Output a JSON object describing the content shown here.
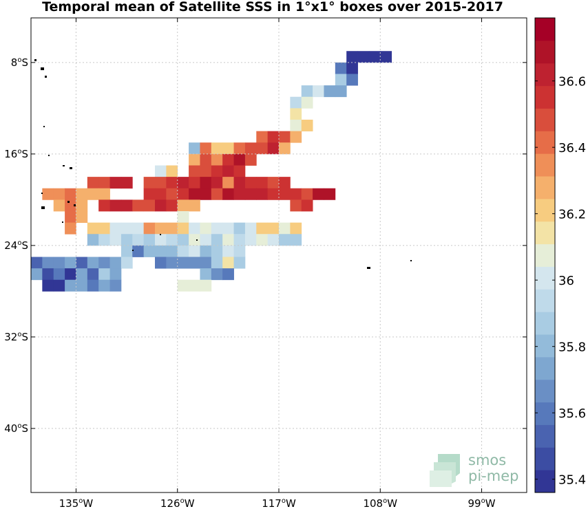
{
  "chart_data": {
    "type": "heatmap",
    "title": "Temporal mean of Satellite SSS in 1°x1° boxes over 2015-2017",
    "x_ticks": [
      {
        "value": -135,
        "label": "135°W"
      },
      {
        "value": -126,
        "label": "126°W"
      },
      {
        "value": -117,
        "label": "117°W"
      },
      {
        "value": -108,
        "label": "108°W"
      },
      {
        "value": -99,
        "label": "99°W"
      }
    ],
    "y_ticks": [
      {
        "value": -8,
        "label": "8°S"
      },
      {
        "value": -16,
        "label": "16°S"
      },
      {
        "value": -24,
        "label": "24°S"
      },
      {
        "value": -32,
        "label": "32°S"
      },
      {
        "value": -40,
        "label": "40°S"
      }
    ],
    "xlim": [
      -139,
      -95
    ],
    "ylim": [
      -45.6,
      -4.1
    ],
    "grid": true,
    "colorbar": {
      "range": [
        35.36,
        36.79
      ],
      "ticks": [
        35.4,
        35.6,
        35.8,
        36,
        36.2,
        36.4,
        36.6
      ],
      "tick_labels": [
        "35.4",
        "35.6",
        "35.8",
        "36",
        "36.2",
        "36.4",
        "36.6"
      ],
      "levels": 21,
      "colors": [
        "#313695",
        "#3c4da3",
        "#4a63b0",
        "#5779bb",
        "#6a8fc5",
        "#7ea7d0",
        "#93bbda",
        "#a9cce3",
        "#bfdaea",
        "#d4e6ee",
        "#e6eed8",
        "#f3e3a6",
        "#f7cc80",
        "#f5b06c",
        "#ef8f58",
        "#e66d48",
        "#d94e3c",
        "#cc3232",
        "#be2230",
        "#af1328",
        "#a50026"
      ]
    },
    "cells": [
      [
        -111,
        -7,
        35.4
      ],
      [
        -110,
        -7,
        35.4
      ],
      [
        -109,
        -7,
        35.4
      ],
      [
        -108,
        -7,
        35.4
      ],
      [
        -112,
        -8,
        35.6
      ],
      [
        -111,
        -8,
        35.42
      ],
      [
        -112,
        -9,
        35.9
      ],
      [
        -111,
        -9,
        35.6
      ],
      [
        -115,
        -10,
        35.85
      ],
      [
        -114,
        -10,
        36.02
      ],
      [
        -113,
        -10,
        35.75
      ],
      [
        -112,
        -10,
        35.75
      ],
      [
        -116,
        -11,
        35.92
      ],
      [
        -115,
        -11,
        36.08
      ],
      [
        -116,
        -12,
        36.12
      ],
      [
        -116,
        -13,
        36.05
      ],
      [
        -115,
        -13,
        36.2
      ],
      [
        -119,
        -14,
        36.42
      ],
      [
        -118,
        -14,
        36.55
      ],
      [
        -117,
        -14,
        36.5
      ],
      [
        -116,
        -14,
        36.28
      ],
      [
        -125,
        -15,
        35.8
      ],
      [
        -124,
        -15,
        36.42
      ],
      [
        -123,
        -15,
        36.2
      ],
      [
        -122,
        -15,
        36.2
      ],
      [
        -121,
        -15,
        36.42
      ],
      [
        -120,
        -15,
        36.5
      ],
      [
        -119,
        -15,
        36.46
      ],
      [
        -118,
        -15,
        36.62
      ],
      [
        -117,
        -15,
        36.3
      ],
      [
        -125,
        -16,
        36.28
      ],
      [
        -124,
        -16,
        36.45
      ],
      [
        -123,
        -16,
        36.38
      ],
      [
        -122,
        -16,
        36.58
      ],
      [
        -121,
        -16,
        36.7
      ],
      [
        -120,
        -16,
        36.46
      ],
      [
        -128,
        -17,
        36.0
      ],
      [
        -127,
        -17,
        36.2
      ],
      [
        -125,
        -17,
        36.45
      ],
      [
        -124,
        -17,
        36.45
      ],
      [
        -123,
        -17,
        36.56
      ],
      [
        -122,
        -17,
        36.62
      ],
      [
        -121,
        -17,
        36.56
      ],
      [
        -134,
        -18,
        36.5
      ],
      [
        -133,
        -18,
        36.5
      ],
      [
        -132,
        -18,
        36.6
      ],
      [
        -131,
        -18,
        36.6
      ],
      [
        -129,
        -18,
        36.5
      ],
      [
        -128,
        -18,
        36.45
      ],
      [
        -127,
        -18,
        36.52
      ],
      [
        -126,
        -18,
        36.6
      ],
      [
        -125,
        -18,
        36.58
      ],
      [
        -124,
        -18,
        36.72
      ],
      [
        -123,
        -18,
        36.62
      ],
      [
        -122,
        -18,
        36.36
      ],
      [
        -121,
        -18,
        36.65
      ],
      [
        -120,
        -18,
        36.55
      ],
      [
        -119,
        -18,
        36.58
      ],
      [
        -118,
        -18,
        36.5
      ],
      [
        -117,
        -18,
        36.54
      ],
      [
        -138,
        -19,
        36.32
      ],
      [
        -137,
        -19,
        36.32
      ],
      [
        -136,
        -19,
        36.4
      ],
      [
        -135,
        -19,
        36.3
      ],
      [
        -134,
        -19,
        36.26
      ],
      [
        -133,
        -19,
        36.3
      ],
      [
        -129,
        -19,
        36.54
      ],
      [
        -128,
        -19,
        36.55
      ],
      [
        -127,
        -19,
        36.45
      ],
      [
        -126,
        -19,
        36.55
      ],
      [
        -125,
        -19,
        36.68
      ],
      [
        -124,
        -19,
        36.72
      ],
      [
        -123,
        -19,
        36.45
      ],
      [
        -122,
        -19,
        36.7
      ],
      [
        -121,
        -19,
        36.65
      ],
      [
        -120,
        -19,
        36.65
      ],
      [
        -119,
        -19,
        36.6
      ],
      [
        -118,
        -19,
        36.52
      ],
      [
        -117,
        -19,
        36.55
      ],
      [
        -116,
        -19,
        36.55
      ],
      [
        -115,
        -19,
        36.5
      ],
      [
        -114,
        -19,
        36.72
      ],
      [
        -113,
        -19,
        36.72
      ],
      [
        -137,
        -20,
        36.3
      ],
      [
        -136,
        -20,
        36.4
      ],
      [
        -135,
        -20,
        36.3
      ],
      [
        -133,
        -20,
        36.58
      ],
      [
        -132,
        -20,
        36.6
      ],
      [
        -131,
        -20,
        36.6
      ],
      [
        -130,
        -20,
        36.45
      ],
      [
        -129,
        -20,
        36.46
      ],
      [
        -128,
        -20,
        36.6
      ],
      [
        -127,
        -20,
        36.52
      ],
      [
        -126,
        -20,
        36.3
      ],
      [
        -125,
        -20,
        36.26
      ],
      [
        -116,
        -20,
        36.46
      ],
      [
        -115,
        -20,
        36.56
      ],
      [
        -136,
        -21,
        36.4
      ],
      [
        -135,
        -21,
        36.3
      ],
      [
        -126,
        -21,
        36.08
      ],
      [
        -136,
        -22,
        36.35
      ],
      [
        -134,
        -22,
        36.22
      ],
      [
        -133,
        -22,
        36.2
      ],
      [
        -132,
        -22,
        36.04
      ],
      [
        -131,
        -22,
        36.04
      ],
      [
        -130,
        -22,
        36.04
      ],
      [
        -129,
        -22,
        36.36
      ],
      [
        -128,
        -22,
        36.26
      ],
      [
        -127,
        -22,
        36.3
      ],
      [
        -126,
        -22,
        36.2
      ],
      [
        -125,
        -22,
        36.04
      ],
      [
        -124,
        -22,
        36.1
      ],
      [
        -123,
        -22,
        36.04
      ],
      [
        -122,
        -22,
        35.98
      ],
      [
        -121,
        -22,
        35.88
      ],
      [
        -120,
        -22,
        36.04
      ],
      [
        -119,
        -22,
        36.2
      ],
      [
        -118,
        -22,
        36.2
      ],
      [
        -117,
        -22,
        36.1
      ],
      [
        -116,
        -22,
        36.2
      ],
      [
        -134,
        -23,
        35.82
      ],
      [
        -133,
        -23,
        35.96
      ],
      [
        -132,
        -23,
        35.98
      ],
      [
        -131,
        -23,
        35.88
      ],
      [
        -130,
        -23,
        35.92
      ],
      [
        -129,
        -23,
        35.86
      ],
      [
        -128,
        -23,
        36.0
      ],
      [
        -127,
        -23,
        35.92
      ],
      [
        -126,
        -23,
        35.9
      ],
      [
        -125,
        -23,
        36.06
      ],
      [
        -124,
        -23,
        36.02
      ],
      [
        -123,
        -23,
        35.84
      ],
      [
        -122,
        -23,
        36.06
      ],
      [
        -121,
        -23,
        35.92
      ],
      [
        -120,
        -23,
        36.02
      ],
      [
        -119,
        -23,
        36.08
      ],
      [
        -118,
        -23,
        36.02
      ],
      [
        -117,
        -23,
        35.86
      ],
      [
        -116,
        -23,
        35.86
      ],
      [
        -131,
        -24,
        35.88
      ],
      [
        -130,
        -24,
        35.58
      ],
      [
        -129,
        -24,
        35.78
      ],
      [
        -128,
        -24,
        35.78
      ],
      [
        -127,
        -24,
        35.82
      ],
      [
        -126,
        -24,
        35.95
      ],
      [
        -125,
        -24,
        36.0
      ],
      [
        -124,
        -24,
        35.82
      ],
      [
        -123,
        -24,
        35.88
      ],
      [
        -122,
        -24,
        36.0
      ],
      [
        -121,
        -24,
        35.94
      ],
      [
        -139,
        -25,
        35.5
      ],
      [
        -138,
        -25,
        35.7
      ],
      [
        -137,
        -25,
        35.7
      ],
      [
        -136,
        -25,
        35.72
      ],
      [
        -135,
        -25,
        35.55
      ],
      [
        -134,
        -25,
        35.75
      ],
      [
        -133,
        -25,
        35.7
      ],
      [
        -132,
        -25,
        35.75
      ],
      [
        -131,
        -25,
        35.95
      ],
      [
        -128,
        -25,
        35.62
      ],
      [
        -127,
        -25,
        35.7
      ],
      [
        -126,
        -25,
        35.64
      ],
      [
        -125,
        -25,
        35.65
      ],
      [
        -124,
        -25,
        35.7
      ],
      [
        -123,
        -25,
        35.86
      ],
      [
        -122,
        -25,
        36.14
      ],
      [
        -121,
        -25,
        35.88
      ],
      [
        -139,
        -26,
        35.75
      ],
      [
        -138,
        -26,
        35.45
      ],
      [
        -137,
        -26,
        35.6
      ],
      [
        -136,
        -26,
        35.4
      ],
      [
        -135,
        -26,
        35.76
      ],
      [
        -134,
        -26,
        35.55
      ],
      [
        -133,
        -26,
        35.86
      ],
      [
        -132,
        -26,
        35.75
      ],
      [
        -124,
        -26,
        35.82
      ],
      [
        -123,
        -26,
        35.68
      ],
      [
        -122,
        -26,
        35.62
      ],
      [
        -138,
        -27,
        35.42
      ],
      [
        -137,
        -27,
        35.42
      ],
      [
        -136,
        -27,
        35.72
      ],
      [
        -135,
        -27,
        35.76
      ],
      [
        -134,
        -27,
        35.62
      ],
      [
        -133,
        -27,
        35.72
      ],
      [
        -132,
        -27,
        35.7
      ],
      [
        -126,
        -27,
        36.05
      ],
      [
        -125,
        -27,
        36.05
      ],
      [
        -124,
        -27,
        36.06
      ]
    ]
  }
}
